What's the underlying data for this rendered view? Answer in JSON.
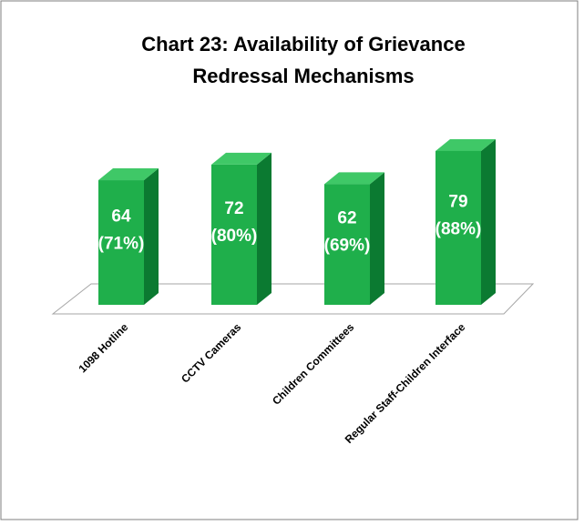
{
  "chart_data": {
    "type": "bar3d",
    "title": [
      "Chart 23: Availability of Grievance",
      "Redressal Mechanisms"
    ],
    "categories": [
      "1098 Hotline",
      "CCTV Cameras",
      "Children Committees",
      "Regular Staff-Children Interface"
    ],
    "values": [
      64,
      72,
      62,
      79
    ],
    "value_labels": [
      [
        "64",
        "(71%)"
      ],
      [
        "72",
        "(80%)"
      ],
      [
        "62",
        "(69%)"
      ],
      [
        "79",
        "(88%)"
      ]
    ],
    "color": "#1faf4b"
  }
}
